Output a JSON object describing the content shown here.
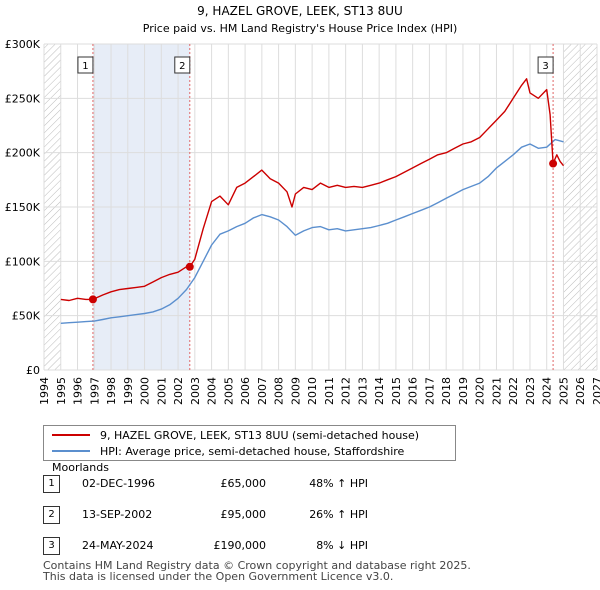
{
  "chart_data": {
    "type": "line",
    "title": "9, HAZEL GROVE, LEEK, ST13 8UU",
    "subtitle": "Price paid vs. HM Land Registry's House Price Index (HPI)",
    "xlabel": "",
    "ylabel": "",
    "xlim": [
      1994,
      2027
    ],
    "ylim": [
      0,
      300000
    ],
    "x_ticks": [
      1994,
      1995,
      1996,
      1997,
      1998,
      1999,
      2000,
      2001,
      2002,
      2003,
      2004,
      2005,
      2006,
      2007,
      2008,
      2009,
      2010,
      2011,
      2012,
      2013,
      2014,
      2015,
      2016,
      2017,
      2018,
      2019,
      2020,
      2021,
      2022,
      2023,
      2024,
      2025,
      2026,
      2027
    ],
    "y_ticks": [
      {
        "value": 0,
        "label": "£0"
      },
      {
        "value": 50000,
        "label": "£50K"
      },
      {
        "value": 100000,
        "label": "£100K"
      },
      {
        "value": 150000,
        "label": "£150K"
      },
      {
        "value": 200000,
        "label": "£200K"
      },
      {
        "value": 250000,
        "label": "£250K"
      },
      {
        "value": 300000,
        "label": "£300K"
      }
    ],
    "grid": true,
    "hatched_regions": [
      [
        1994,
        1995
      ],
      [
        2025,
        2027
      ]
    ],
    "shaded_band": [
      1996.92,
      2002.7
    ],
    "series": [
      {
        "name": "9, HAZEL GROVE, LEEK, ST13 8UU (semi-detached house)",
        "color": "#cc0000",
        "x": [
          1995.0,
          1995.5,
          1996.0,
          1996.5,
          1996.92,
          1997.5,
          1998.0,
          1998.5,
          1999.0,
          1999.5,
          2000.0,
          2000.5,
          2001.0,
          2001.5,
          2002.0,
          2002.5,
          2002.7,
          2003.0,
          2003.5,
          2004.0,
          2004.5,
          2005.0,
          2005.5,
          2006.0,
          2006.5,
          2007.0,
          2007.5,
          2008.0,
          2008.5,
          2008.8,
          2009.0,
          2009.5,
          2010.0,
          2010.5,
          2011.0,
          2011.5,
          2012.0,
          2012.5,
          2013.0,
          2013.5,
          2014.0,
          2014.5,
          2015.0,
          2015.5,
          2016.0,
          2016.5,
          2017.0,
          2017.5,
          2018.0,
          2018.5,
          2019.0,
          2019.5,
          2020.0,
          2020.5,
          2021.0,
          2021.5,
          2022.0,
          2022.5,
          2022.8,
          2023.0,
          2023.5,
          2024.0,
          2024.2,
          2024.38,
          2024.6,
          2024.8,
          2025.0
        ],
        "values": [
          65000,
          64000,
          66000,
          65000,
          65000,
          69000,
          72000,
          74000,
          75000,
          76000,
          77000,
          81000,
          85000,
          88000,
          90000,
          95000,
          95000,
          102000,
          130000,
          155000,
          160000,
          152000,
          168000,
          172000,
          178000,
          184000,
          176000,
          172000,
          164000,
          150000,
          162000,
          168000,
          166000,
          172000,
          168000,
          170000,
          168000,
          169000,
          168000,
          170000,
          172000,
          175000,
          178000,
          182000,
          186000,
          190000,
          194000,
          198000,
          200000,
          204000,
          208000,
          210000,
          214000,
          222000,
          230000,
          238000,
          250000,
          262000,
          268000,
          255000,
          250000,
          258000,
          235000,
          190000,
          198000,
          192000,
          188000
        ]
      },
      {
        "name": "HPI: Average price, semi-detached house, Staffordshire Moorlands",
        "color": "#5b8fce",
        "x": [
          1995.0,
          1995.5,
          1996.0,
          1996.5,
          1997.0,
          1997.5,
          1998.0,
          1998.5,
          1999.0,
          1999.5,
          2000.0,
          2000.5,
          2001.0,
          2001.5,
          2002.0,
          2002.5,
          2003.0,
          2003.5,
          2004.0,
          2004.5,
          2005.0,
          2005.5,
          2006.0,
          2006.5,
          2007.0,
          2007.5,
          2008.0,
          2008.5,
          2009.0,
          2009.5,
          2010.0,
          2010.5,
          2011.0,
          2011.5,
          2012.0,
          2012.5,
          2013.0,
          2013.5,
          2014.0,
          2014.5,
          2015.0,
          2015.5,
          2016.0,
          2016.5,
          2017.0,
          2017.5,
          2018.0,
          2018.5,
          2019.0,
          2019.5,
          2020.0,
          2020.5,
          2021.0,
          2021.5,
          2022.0,
          2022.5,
          2023.0,
          2023.5,
          2024.0,
          2024.5,
          2025.0
        ],
        "values": [
          43000,
          43500,
          44000,
          44500,
          45000,
          46500,
          48000,
          49000,
          50000,
          51000,
          52000,
          53500,
          56000,
          60000,
          66000,
          74000,
          85000,
          100000,
          115000,
          125000,
          128000,
          132000,
          135000,
          140000,
          143000,
          141000,
          138000,
          132000,
          124000,
          128000,
          131000,
          132000,
          129000,
          130000,
          128000,
          129000,
          130000,
          131000,
          133000,
          135000,
          138000,
          141000,
          144000,
          147000,
          150000,
          154000,
          158000,
          162000,
          166000,
          169000,
          172000,
          178000,
          186000,
          192000,
          198000,
          205000,
          208000,
          204000,
          205000,
          212000,
          210000
        ]
      }
    ],
    "transactions": [
      {
        "label": "1",
        "x": 1996.92,
        "y": 65000
      },
      {
        "label": "2",
        "x": 2002.7,
        "y": 95000
      },
      {
        "label": "3",
        "x": 2024.38,
        "y": 190000
      }
    ]
  },
  "table": {
    "rows": [
      {
        "num": "1",
        "date": "02-DEC-1996",
        "price": "£65,000",
        "hpi": "48% ↑ HPI"
      },
      {
        "num": "2",
        "date": "13-SEP-2002",
        "price": "£95,000",
        "hpi": "26% ↑ HPI"
      },
      {
        "num": "3",
        "date": "24-MAY-2024",
        "price": "£190,000",
        "hpi": "8% ↓ HPI"
      }
    ]
  },
  "footer": {
    "line1": "Contains HM Land Registry data © Crown copyright and database right 2025.",
    "line2": "This data is licensed under the Open Government Licence v3.0."
  }
}
